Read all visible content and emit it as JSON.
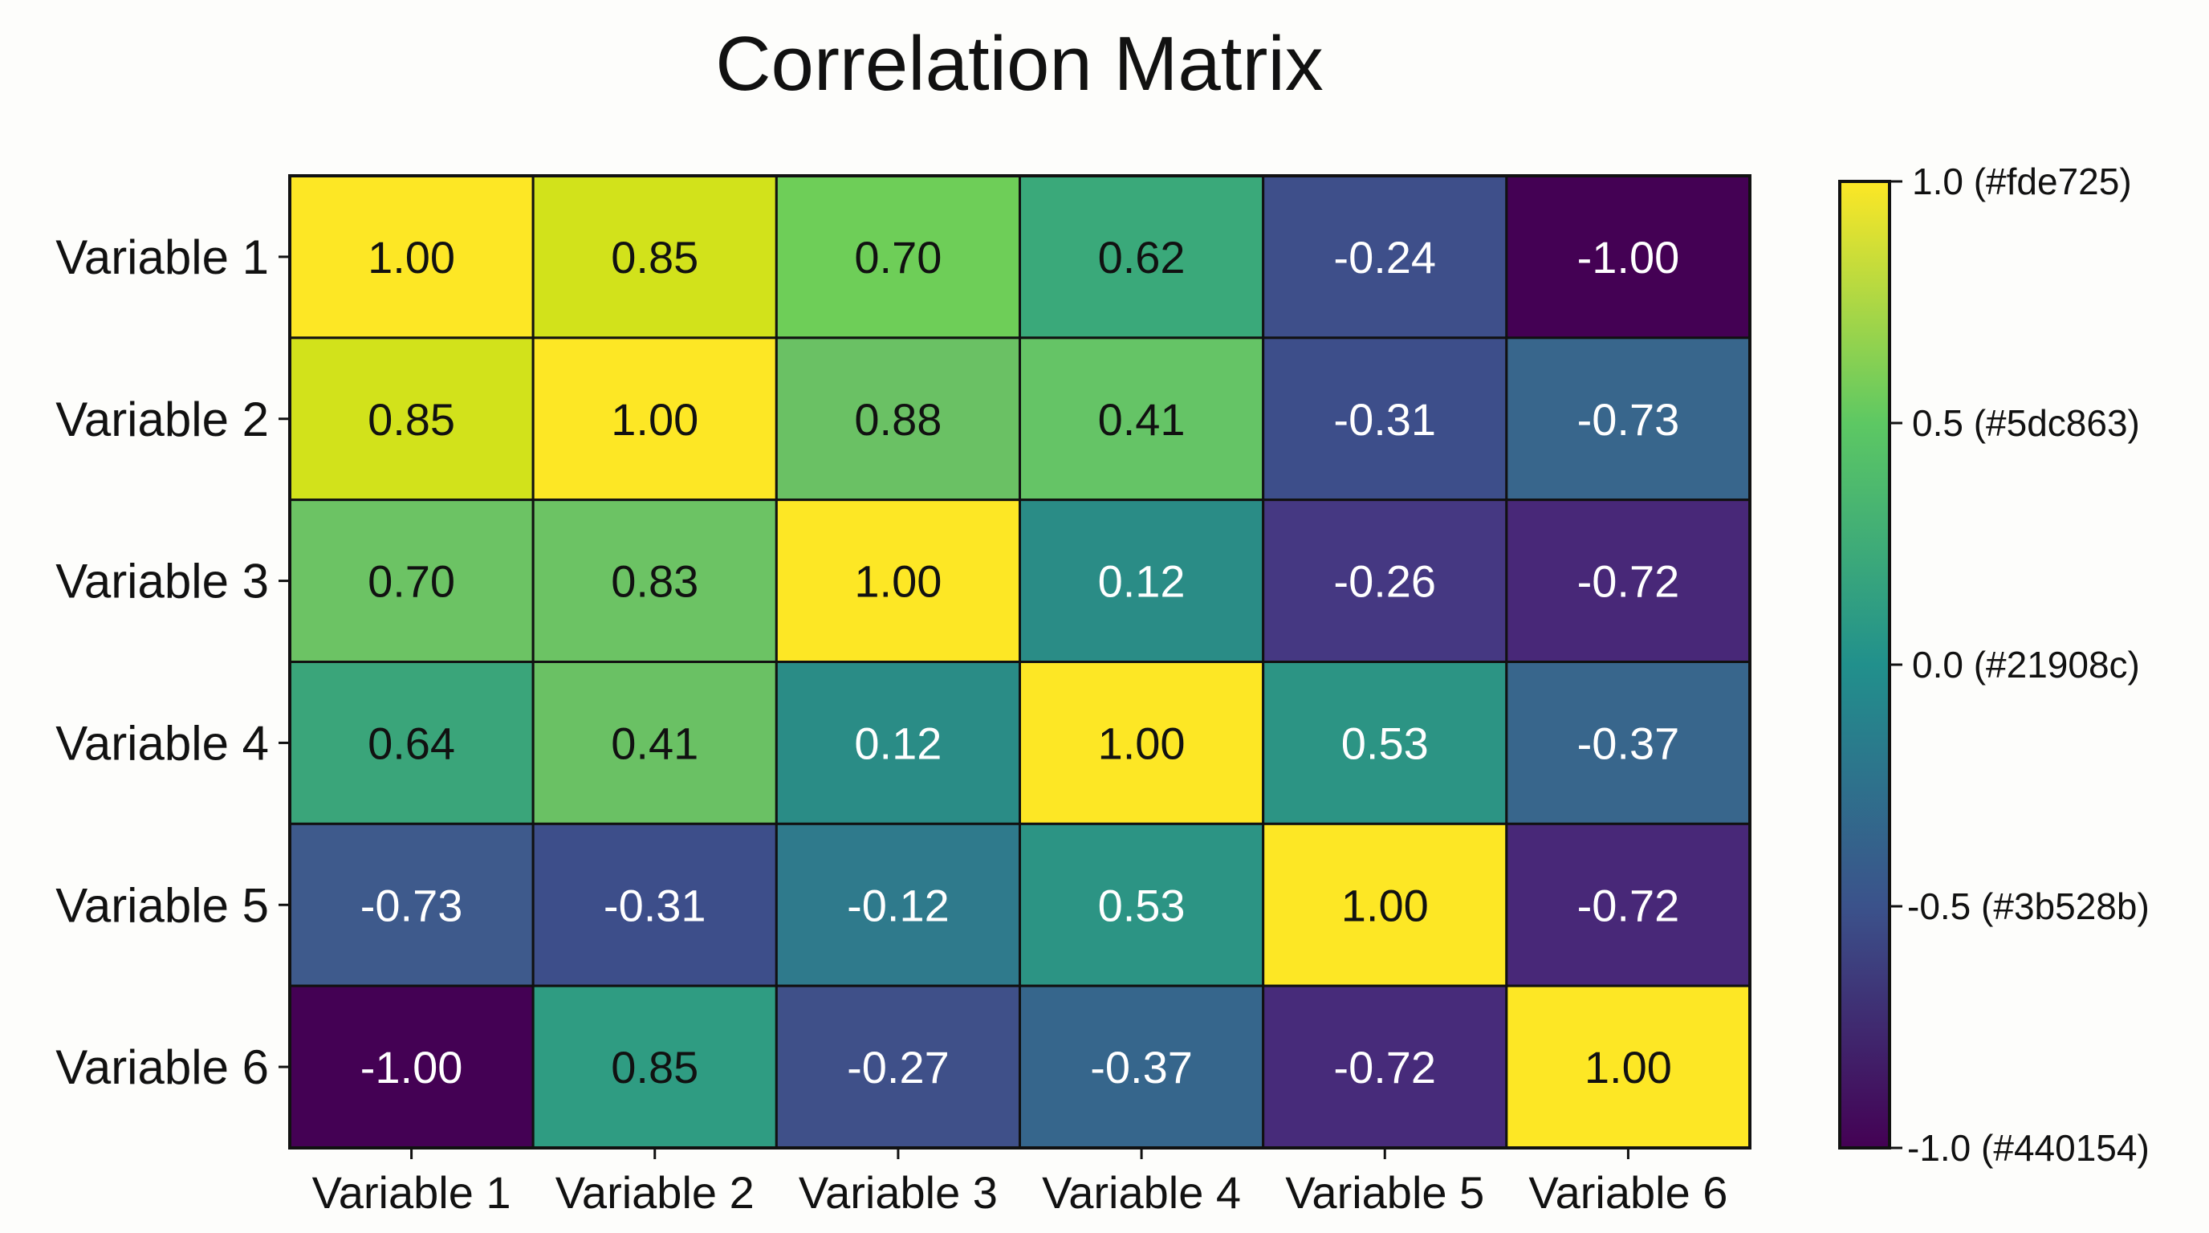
{
  "chart_data": {
    "type": "heatmap",
    "title": "Correlation Matrix",
    "row_labels": [
      "Variable 1",
      "Variable 2",
      "Variable 3",
      "Variable 4",
      "Variable 5",
      "Variable 6"
    ],
    "col_labels": [
      "Variable 1",
      "Variable 2",
      "Variable 3",
      "Variable 4",
      "Variable 5",
      "Variable 6"
    ],
    "values": [
      [
        1.0,
        0.85,
        0.7,
        0.62,
        -0.24,
        -1.0
      ],
      [
        0.85,
        1.0,
        0.88,
        0.41,
        -0.31,
        -0.73
      ],
      [
        0.7,
        0.83,
        1.0,
        0.12,
        -0.26,
        -0.72
      ],
      [
        0.64,
        0.41,
        0.12,
        1.0,
        0.53,
        -0.37
      ],
      [
        -0.73,
        -0.31,
        -0.12,
        0.53,
        1.0,
        -0.72
      ],
      [
        -1.0,
        0.85,
        -0.27,
        -0.37,
        -0.72,
        1.0
      ]
    ],
    "cell_colors": [
      [
        "#fde725",
        "#d2e21b",
        "#6ece58",
        "#3aa97a",
        "#3e4f8a",
        "#440154"
      ],
      [
        "#d2e21b",
        "#fde725",
        "#6ac164",
        "#65c466",
        "#3d4e8a",
        "#38668c"
      ],
      [
        "#6cc364",
        "#6cc364",
        "#fde725",
        "#2a8c86",
        "#453882",
        "#482878"
      ],
      [
        "#3aa57a",
        "#6ac164",
        "#2a8c86",
        "#fde725",
        "#2c9484",
        "#38668c"
      ],
      [
        "#3e5a8c",
        "#3d4e8a",
        "#2f7a8c",
        "#2c9484",
        "#fde725",
        "#482878"
      ],
      [
        "#440154",
        "#2f9c82",
        "#3f5089",
        "#36668c",
        "#472b7a",
        "#fde725"
      ]
    ],
    "value_format": "2 decimals",
    "colorbar": {
      "range": [
        -1.0,
        1.0
      ],
      "colormap": "viridis",
      "ticks": [
        {
          "value": 1.0,
          "label": "1.0 (#fde725)",
          "color": "#fde725"
        },
        {
          "value": 0.5,
          "label": "0.5 (#5dc863)",
          "color": "#5dc863"
        },
        {
          "value": 0.0,
          "label": "0.0 (#21908c)",
          "color": "#21908c"
        },
        {
          "value": -0.5,
          "label": "-0.5 (#3b528b)",
          "color": "#3b528b"
        },
        {
          "value": -1.0,
          "label": "-1.0 (#440154)",
          "color": "#440154"
        }
      ]
    },
    "grid": true
  }
}
